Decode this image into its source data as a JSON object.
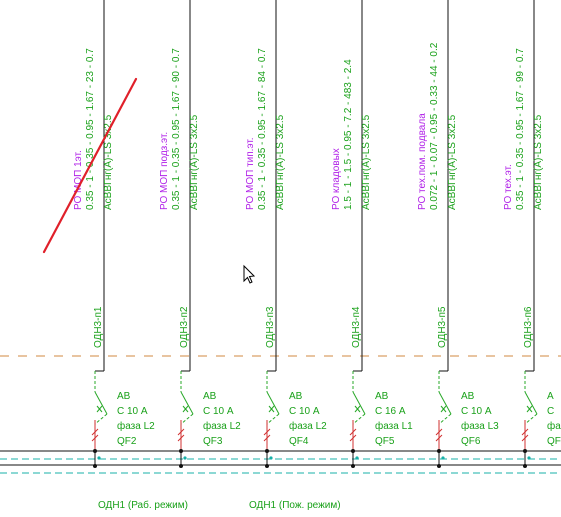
{
  "colors": {
    "background": "#ffffff",
    "line_black": "#111111",
    "text_green": "#1aa11a",
    "text_purple": "#b020e8",
    "dash_orange": "#d08a40",
    "bus_teal": "#18b0a8",
    "breaker_red": "#d03030",
    "breaker_green": "#28a828",
    "annotation_red": "#e0202a",
    "cursor": "#000000"
  },
  "feeders": [
    {
      "id": "n1",
      "tag": "ОДН3-п1",
      "room": "РО МОП 1эт.",
      "params": "0.35 - 1 - 0.35 - 0.95 - 1.67 - 23 - 0.7",
      "cable": "АсВВГнг(А)-LS 3x2.5",
      "breaker": {
        "type": "АВ",
        "rating": "С 10 А",
        "phase": "фаза L2",
        "designator": "QF2"
      }
    },
    {
      "id": "n2",
      "tag": "ОДН3-п2",
      "room": "РО МОП подз.эт.",
      "params": "0.35 - 1 - 0.35 - 0.95 - 1.67 - 90 - 0.7",
      "cable": "АсВВГнг(А)-LS 3x2.5",
      "breaker": {
        "type": "АВ",
        "rating": "С 10 А",
        "phase": "фаза L2",
        "designator": "QF3"
      }
    },
    {
      "id": "n3",
      "tag": "ОДН3-п3",
      "room": "РО МОП тип.эт.",
      "params": "0.35 - 1 - 0.35 - 0.95 - 1.67 - 84 - 0.7",
      "cable": "АсВВГнг(А)-LS 3x2.5",
      "breaker": {
        "type": "АВ",
        "rating": "С 10 А",
        "phase": "фаза L2",
        "designator": "QF4"
      }
    },
    {
      "id": "n4",
      "tag": "ОДН3-п4",
      "room": "РО кладовых",
      "params": "1.5 - 1 - 1.5 - 0.95 - 7.2 - 483 - 2.4",
      "cable": "АсВВГнг(А)-LS 3x2.5",
      "breaker": {
        "type": "АВ",
        "rating": "С 16 А",
        "phase": "фаза L1",
        "designator": "QF5"
      }
    },
    {
      "id": "n5",
      "tag": "ОДН3-п5",
      "room": "РО тех.пом. подвала",
      "params": "0.072 - 1 - 0.07 - 0.95 - 0.33 - 44 - 0.2",
      "cable": "АсВВГнг(А)-LS 3x2.5",
      "breaker": {
        "type": "АВ",
        "rating": "С 10 А",
        "phase": "фаза L3",
        "designator": "QF6"
      }
    },
    {
      "id": "n6",
      "tag": "ОДН3-п6",
      "room": "РО тех.эт.",
      "params": "0.35 - 1 - 0.35 - 0.95 - 1.67 - 99 - 0.7",
      "cable": "АсВВГнг(А)-LS 3x2.5",
      "breaker": {
        "type": "А",
        "rating": "С",
        "phase": "фа",
        "designator": "QF"
      }
    }
  ],
  "bus_labels": {
    "working": "ОДН1 (Раб. режим)",
    "fire": "ОДН1 (Пож. режим)"
  },
  "icons": {
    "cursor": "mouse-pointer-icon",
    "annotation": "red-strike-line"
  }
}
